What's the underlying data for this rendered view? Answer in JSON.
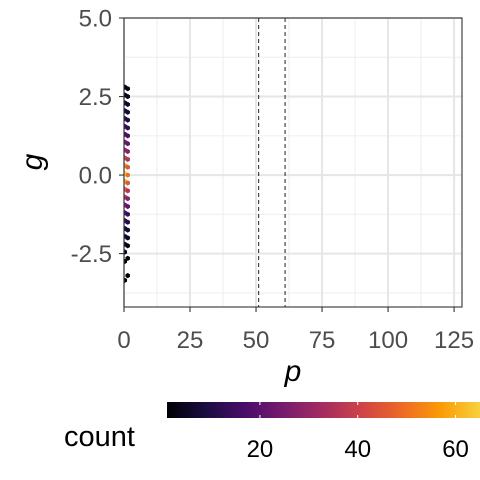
{
  "chart_data": {
    "type": "heatmap",
    "title": "",
    "xlabel": "p",
    "ylabel": "g",
    "xlim": [
      0,
      128
    ],
    "ylim": [
      -4.2,
      5.0
    ],
    "x_ticks": [
      0,
      25,
      50,
      75,
      100,
      125
    ],
    "x_tick_labels": [
      "0",
      "25",
      "50",
      "75",
      "100",
      "125"
    ],
    "y_ticks": [
      -2.5,
      0.0,
      2.5,
      5.0
    ],
    "y_tick_labels": [
      "-2.5",
      "0.0",
      "2.5",
      "5.0"
    ],
    "vlines": [
      51,
      61
    ],
    "grid": true,
    "legend": {
      "title": "count",
      "placement": "bottom",
      "min": 1,
      "max": 65,
      "ticks": [
        20,
        40,
        60
      ],
      "tick_labels": [
        "20",
        "40",
        "60"
      ],
      "palette": [
        "#000004",
        "#1b0c41",
        "#4a0c6b",
        "#781c6d",
        "#a52c60",
        "#cf4446",
        "#ed6925",
        "#fb9b06",
        "#f7d13d"
      ]
    },
    "cells": [
      {
        "x": 0.3,
        "y": 2.8,
        "count": 2
      },
      {
        "x": 1.4,
        "y": 2.75,
        "count": 3
      },
      {
        "x": 0.3,
        "y": 2.55,
        "count": 4
      },
      {
        "x": 1.4,
        "y": 2.5,
        "count": 4
      },
      {
        "x": 0.3,
        "y": 2.3,
        "count": 6
      },
      {
        "x": 1.4,
        "y": 2.25,
        "count": 6
      },
      {
        "x": 0.3,
        "y": 2.05,
        "count": 8
      },
      {
        "x": 1.4,
        "y": 2.0,
        "count": 8
      },
      {
        "x": 0.3,
        "y": 1.8,
        "count": 11
      },
      {
        "x": 1.4,
        "y": 1.75,
        "count": 10
      },
      {
        "x": 0.3,
        "y": 1.55,
        "count": 14
      },
      {
        "x": 1.4,
        "y": 1.5,
        "count": 13
      },
      {
        "x": 0.3,
        "y": 1.3,
        "count": 18
      },
      {
        "x": 1.4,
        "y": 1.25,
        "count": 17
      },
      {
        "x": 0.3,
        "y": 1.05,
        "count": 24
      },
      {
        "x": 1.4,
        "y": 1.0,
        "count": 22
      },
      {
        "x": 0.3,
        "y": 0.8,
        "count": 32
      },
      {
        "x": 1.4,
        "y": 0.75,
        "count": 28
      },
      {
        "x": 0.3,
        "y": 0.55,
        "count": 42
      },
      {
        "x": 1.4,
        "y": 0.5,
        "count": 36
      },
      {
        "x": 0.3,
        "y": 0.3,
        "count": 55
      },
      {
        "x": 1.4,
        "y": 0.25,
        "count": 45
      },
      {
        "x": 0.3,
        "y": 0.05,
        "count": 65
      },
      {
        "x": 1.4,
        "y": 0.0,
        "count": 50
      },
      {
        "x": 0.3,
        "y": -0.2,
        "count": 60
      },
      {
        "x": 1.4,
        "y": -0.25,
        "count": 45
      },
      {
        "x": 0.3,
        "y": -0.45,
        "count": 48
      },
      {
        "x": 1.4,
        "y": -0.5,
        "count": 36
      },
      {
        "x": 0.3,
        "y": -0.7,
        "count": 36
      },
      {
        "x": 1.4,
        "y": -0.75,
        "count": 28
      },
      {
        "x": 0.3,
        "y": -0.95,
        "count": 26
      },
      {
        "x": 1.4,
        "y": -1.0,
        "count": 21
      },
      {
        "x": 0.3,
        "y": -1.2,
        "count": 18
      },
      {
        "x": 1.4,
        "y": -1.25,
        "count": 15
      },
      {
        "x": 0.3,
        "y": -1.45,
        "count": 13
      },
      {
        "x": 1.4,
        "y": -1.5,
        "count": 10
      },
      {
        "x": 0.3,
        "y": -1.7,
        "count": 9
      },
      {
        "x": 1.4,
        "y": -1.75,
        "count": 7
      },
      {
        "x": 0.3,
        "y": -1.95,
        "count": 6
      },
      {
        "x": 1.4,
        "y": -2.0,
        "count": 5
      },
      {
        "x": 0.3,
        "y": -2.2,
        "count": 4
      },
      {
        "x": 1.4,
        "y": -2.25,
        "count": 3
      },
      {
        "x": 0.3,
        "y": -2.45,
        "count": 3
      },
      {
        "x": 1.4,
        "y": -2.65,
        "count": 2
      },
      {
        "x": 0.3,
        "y": -2.75,
        "count": 2
      },
      {
        "x": 1.4,
        "y": -3.2,
        "count": 1
      },
      {
        "x": 0.3,
        "y": -3.35,
        "count": 1
      }
    ]
  }
}
